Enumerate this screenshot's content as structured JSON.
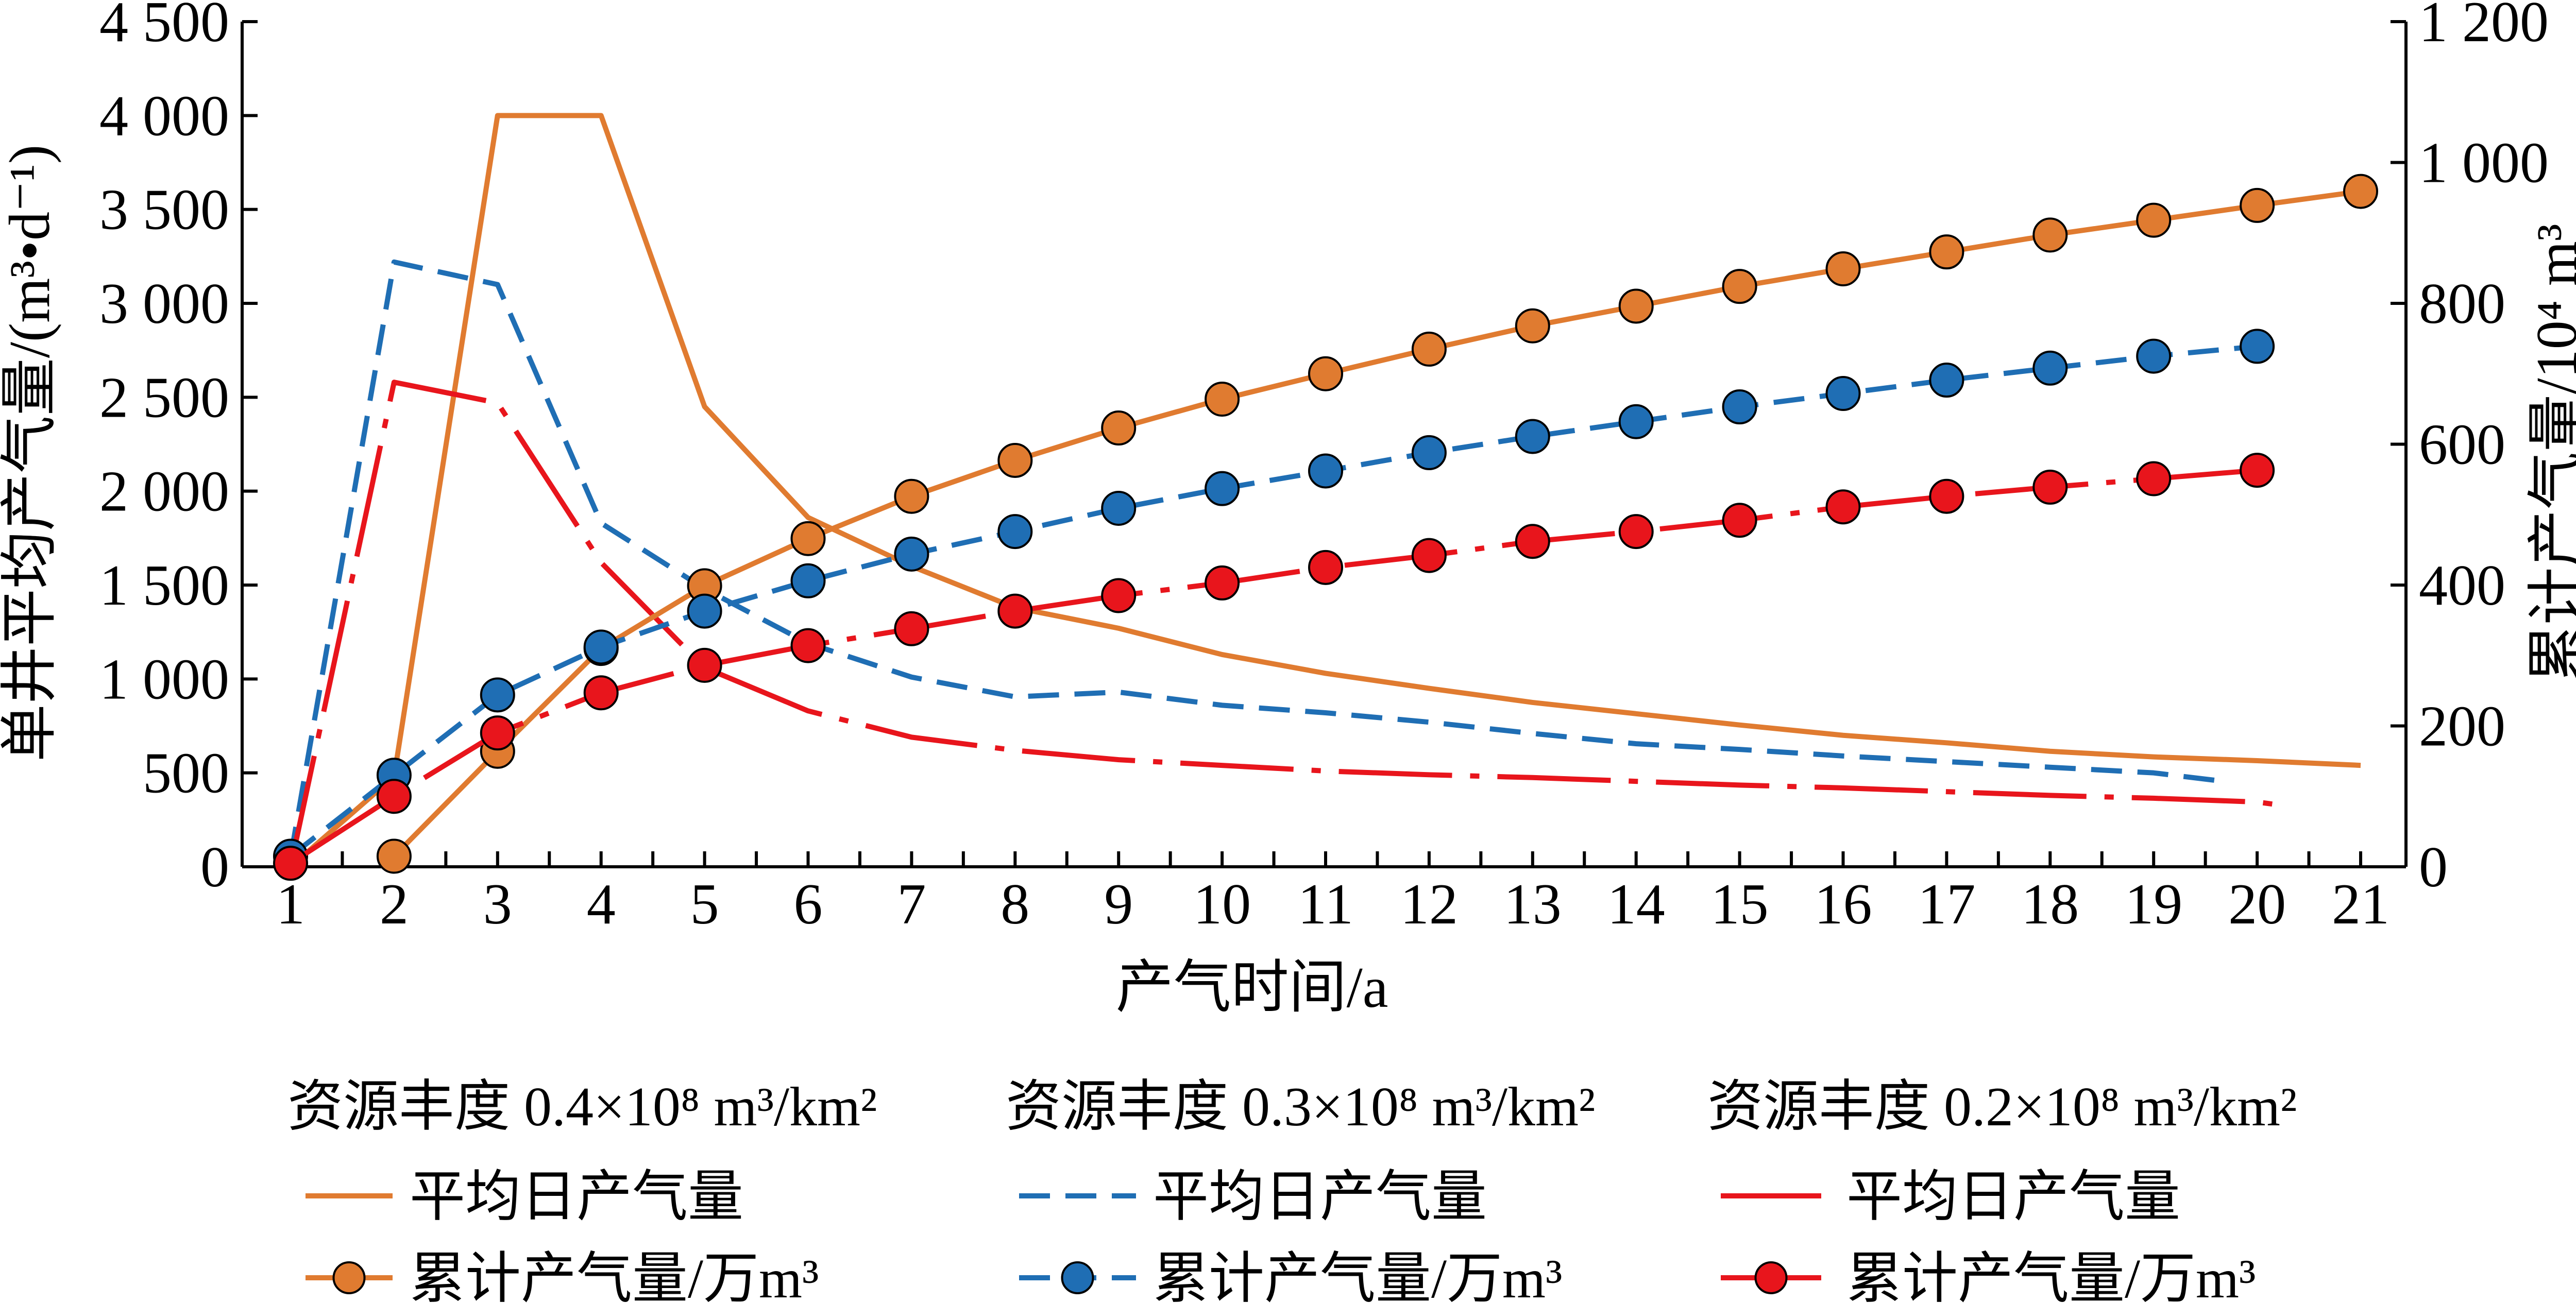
{
  "chart_data": {
    "type": "line",
    "xlabel": "产气时间/a",
    "ylabel_left": "单井平均产气量/(m³•d⁻¹)",
    "ylabel_right": "累计产气量/10⁴ m³",
    "xlim": [
      1,
      21
    ],
    "ylim_left": [
      0,
      4500
    ],
    "ylim_right": [
      0,
      1200
    ],
    "x_ticks": [
      1,
      2,
      3,
      4,
      5,
      6,
      7,
      8,
      9,
      10,
      11,
      12,
      13,
      14,
      15,
      16,
      17,
      18,
      19,
      20,
      21
    ],
    "y_left_ticks": [
      0,
      500,
      1000,
      1500,
      2000,
      2500,
      3000,
      3500,
      4000,
      4500
    ],
    "y_left_tick_labels": [
      "0",
      "500",
      "1 000",
      "1 500",
      "2 000",
      "2 500",
      "3 000",
      "3 500",
      "4 000",
      "4 500"
    ],
    "y_right_ticks": [
      0,
      200,
      400,
      600,
      800,
      1000,
      1200
    ],
    "y_right_tick_labels": [
      "0",
      "200",
      "400",
      "600",
      "800",
      "1 000",
      "1 200"
    ],
    "grid": false,
    "legend_placement": "bottom",
    "legend_groups": [
      {
        "title": "资源丰度 0.4×10⁸ m³/km²",
        "color": "#E07B30"
      },
      {
        "title": "资源丰度 0.3×10⁸ m³/km²",
        "color": "#1F6EB4"
      },
      {
        "title": "资源丰度 0.2×10⁸ m³/km²",
        "color": "#E8151C"
      }
    ],
    "series": [
      {
        "name": "平均日产气量",
        "group": 0,
        "axis": "left",
        "style": "solid",
        "markers": false,
        "x": [
          1,
          2,
          3,
          4,
          5,
          6,
          7,
          8,
          9,
          10,
          11,
          12,
          13,
          14,
          15,
          16,
          17,
          18,
          19,
          20,
          21
        ],
        "y": [
          0,
          480,
          4000,
          4000,
          2450,
          1860,
          1600,
          1380,
          1270,
          1130,
          1030,
          950,
          875,
          815,
          755,
          700,
          660,
          615,
          585,
          565,
          540
        ]
      },
      {
        "name": "累计产气量/万m³",
        "group": 0,
        "axis": "right",
        "style": "solid",
        "markers": true,
        "x": [
          2,
          3,
          4,
          5,
          6,
          7,
          8,
          9,
          10,
          11,
          12,
          13,
          14,
          15,
          16,
          17,
          18,
          19,
          20,
          21
        ],
        "y": [
          15,
          164,
          310,
          399,
          466,
          526,
          577,
          623,
          664,
          700,
          735,
          768,
          796,
          824,
          849,
          873,
          897,
          918,
          939,
          959
        ]
      },
      {
        "name": "平均日产气量",
        "group": 1,
        "axis": "left",
        "style": "dashed",
        "markers": false,
        "x": [
          1,
          2,
          3,
          4,
          5,
          6,
          7,
          8,
          9,
          10,
          11,
          12,
          13,
          14,
          15,
          16,
          17,
          18,
          19,
          19.6
        ],
        "y": [
          50,
          3220,
          3100,
          1830,
          1480,
          1190,
          1010,
          905,
          930,
          860,
          820,
          770,
          710,
          655,
          625,
          590,
          560,
          530,
          500,
          460
        ]
      },
      {
        "name": "累计产气量/万m³",
        "group": 1,
        "axis": "right",
        "style": "dashed",
        "markers": true,
        "x": [
          1,
          2,
          3,
          4,
          5,
          6,
          7,
          8,
          9,
          10,
          11,
          12,
          13,
          14,
          15,
          16,
          17,
          18,
          19,
          20
        ],
        "y": [
          15,
          130,
          244,
          312,
          363,
          406,
          444,
          476,
          509,
          537,
          562,
          588,
          611,
          632,
          653,
          672,
          691,
          708,
          725,
          739
        ]
      },
      {
        "name": "平均日产气量",
        "group": 2,
        "axis": "left",
        "style": "dashdot",
        "markers": false,
        "x": [
          1,
          2,
          3,
          4,
          5,
          6,
          7,
          8,
          9,
          10,
          11,
          12,
          13,
          14,
          15,
          16,
          17,
          18,
          19,
          20,
          20.2
        ],
        "y": [
          0,
          2580,
          2470,
          1620,
          1060,
          830,
          690,
          620,
          570,
          540,
          510,
          490,
          475,
          455,
          435,
          420,
          400,
          380,
          365,
          345,
          330
        ]
      },
      {
        "name": "累计产气量/万m³",
        "group": 2,
        "axis": "right",
        "style": "dashdot",
        "markers": true,
        "x": [
          1,
          2,
          3,
          4,
          5,
          6,
          7,
          8,
          9,
          10,
          11,
          12,
          13,
          14,
          15,
          16,
          17,
          18,
          19,
          20
        ],
        "y": [
          5,
          100,
          190,
          247,
          286,
          314,
          338,
          363,
          385,
          403,
          425,
          442,
          462,
          476,
          492,
          511,
          526,
          539,
          551,
          563
        ]
      }
    ]
  }
}
